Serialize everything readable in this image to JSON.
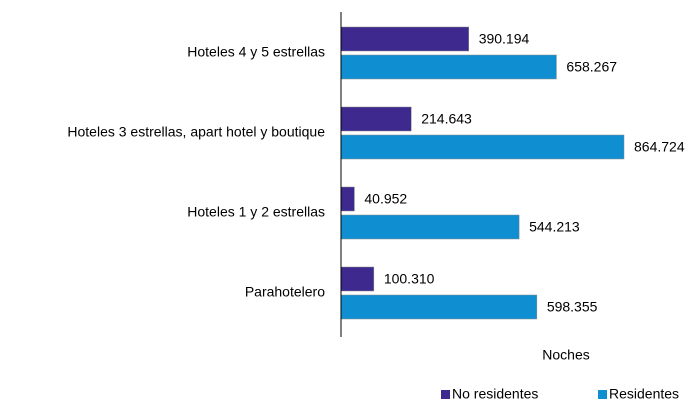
{
  "chart_data": {
    "type": "bar",
    "orientation": "horizontal",
    "categories": [
      "Hoteles 4 y 5 estrellas",
      "Hoteles 3 estrellas, apart hotel y boutique",
      "Hoteles 1 y 2 estrellas",
      "Parahotelero"
    ],
    "x_label": "Noches",
    "legend": "bottom-right",
    "series": [
      {
        "name": "No residentes",
        "color": "#3e2a8e",
        "values": [
          390194,
          214643,
          40952,
          100310
        ],
        "value_labels": [
          "390.194",
          "214.643",
          "40.952",
          "100.310"
        ]
      },
      {
        "name": "Residentes",
        "color": "#0f8fd1",
        "values": [
          658267,
          864724,
          544213,
          598355
        ],
        "value_labels": [
          "658.267",
          "864.724",
          "544.213",
          "598.355"
        ]
      }
    ]
  }
}
